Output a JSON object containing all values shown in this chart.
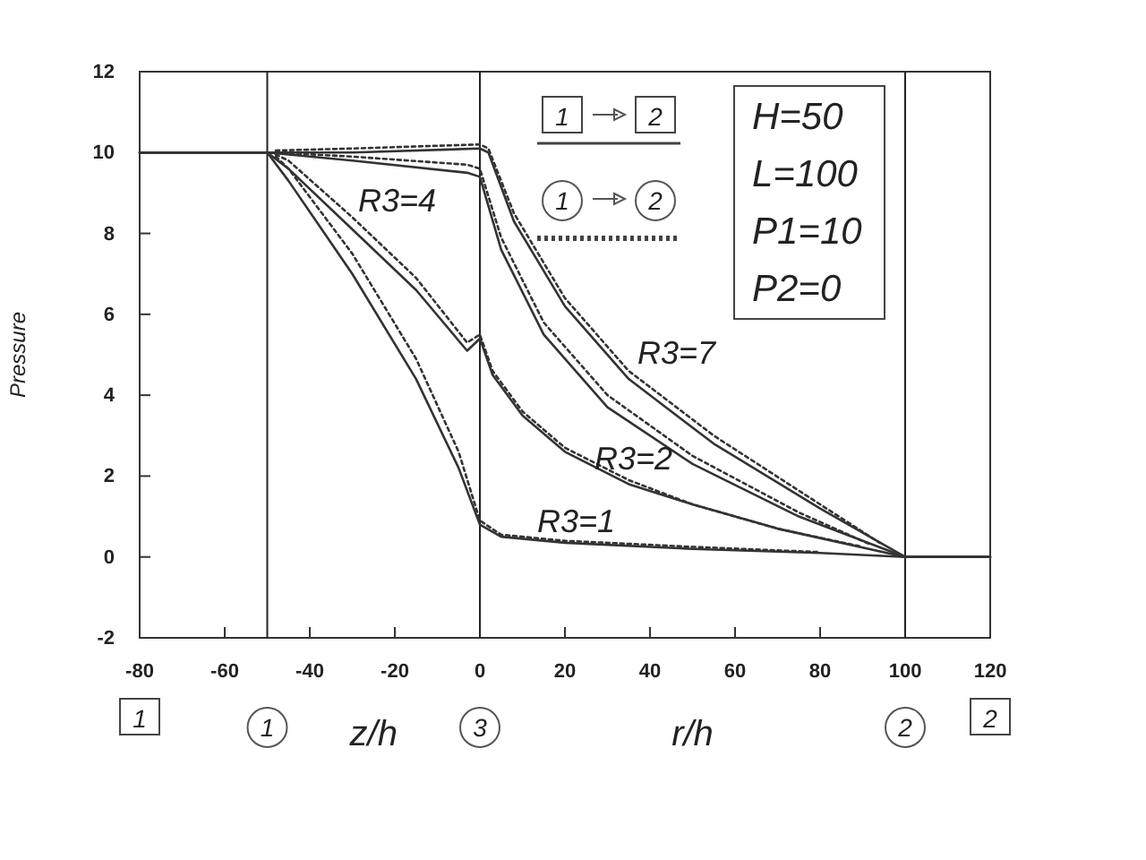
{
  "chart_data": {
    "type": "line",
    "xlabel": "z/h",
    "ylabel": "Pressure",
    "xlim": [
      -80,
      120
    ],
    "xticks": [
      -80,
      -60,
      -40,
      -20,
      0,
      20,
      40,
      60,
      80,
      100,
      120
    ],
    "ylim": [
      -2,
      12
    ],
    "yticks": [
      -2,
      0,
      2,
      4,
      6,
      8,
      10,
      12
    ],
    "grid": false,
    "marker": "none",
    "series": [
      {
        "color": "#333333",
        "line_style": "solid",
        "x": [
          -80,
          -50,
          -45,
          -30,
          -15,
          -5,
          0,
          5,
          20,
          50,
          80,
          100,
          120
        ],
        "values": [
          10,
          10,
          9.3,
          7.0,
          4.4,
          2.2,
          0.8,
          0.5,
          0.35,
          0.2,
          0.1,
          0,
          0
        ]
      },
      {
        "color": "#333333",
        "line_style": "dotted",
        "x": [
          -48,
          -45,
          -30,
          -15,
          -5,
          0,
          5,
          20,
          50,
          80
        ],
        "values": [
          9.9,
          9.6,
          7.5,
          4.9,
          2.6,
          0.9,
          0.55,
          0.4,
          0.25,
          0.12
        ]
      },
      {
        "color": "#333333",
        "line_style": "solid",
        "x": [
          -80,
          -50,
          -45,
          -30,
          -15,
          -3,
          0,
          3,
          10,
          20,
          35,
          50,
          70,
          100,
          120
        ],
        "values": [
          10,
          10,
          9.6,
          8.1,
          6.6,
          5.1,
          5.4,
          4.5,
          3.5,
          2.6,
          1.8,
          1.3,
          0.7,
          0,
          0
        ]
      },
      {
        "color": "#333333",
        "line_style": "dotted",
        "x": [
          -48,
          -45,
          -30,
          -15,
          -3,
          0,
          3,
          10,
          20,
          35,
          50,
          70,
          90
        ],
        "values": [
          9.95,
          9.8,
          8.4,
          6.9,
          5.3,
          5.5,
          4.6,
          3.6,
          2.7,
          1.9,
          1.3,
          0.7,
          0.25
        ]
      },
      {
        "color": "#333333",
        "line_style": "solid",
        "x": [
          -80,
          -50,
          -30,
          -3,
          0,
          5,
          15,
          30,
          50,
          75,
          100,
          120
        ],
        "values": [
          10,
          10,
          9.8,
          9.5,
          9.4,
          7.6,
          5.5,
          3.7,
          2.3,
          1.0,
          0,
          0
        ]
      },
      {
        "color": "#333333",
        "line_style": "dotted",
        "x": [
          -48,
          -30,
          -3,
          0,
          5,
          15,
          30,
          50,
          75,
          92
        ],
        "values": [
          10,
          9.9,
          9.7,
          9.6,
          7.9,
          5.8,
          4.0,
          2.5,
          1.1,
          0.3
        ]
      },
      {
        "color": "#333333",
        "line_style": "solid",
        "x": [
          -80,
          -50,
          -30,
          0,
          2,
          8,
          20,
          35,
          55,
          80,
          100,
          120
        ],
        "values": [
          10,
          10,
          10.0,
          10.1,
          10.0,
          8.3,
          6.2,
          4.4,
          2.8,
          1.2,
          0,
          0
        ]
      },
      {
        "color": "#333333",
        "line_style": "dotted",
        "x": [
          -48,
          -30,
          0,
          2,
          8,
          20,
          35,
          55,
          80,
          94
        ],
        "values": [
          10.05,
          10.1,
          10.2,
          10.1,
          8.5,
          6.4,
          4.6,
          3.0,
          1.3,
          0.35
        ]
      }
    ],
    "ref_lines": [
      {
        "axis": "x",
        "value": -50
      },
      {
        "axis": "x",
        "value": 0
      },
      {
        "axis": "x",
        "value": 100
      }
    ],
    "annotations": [
      "R3=1",
      "R3=2",
      "R3=4",
      "R3=7",
      "H=50",
      "L=100",
      "P1=10",
      "P2=0",
      "1",
      "2",
      "1",
      "2",
      "1",
      "2",
      "r/h",
      "1",
      "3",
      "2"
    ]
  }
}
